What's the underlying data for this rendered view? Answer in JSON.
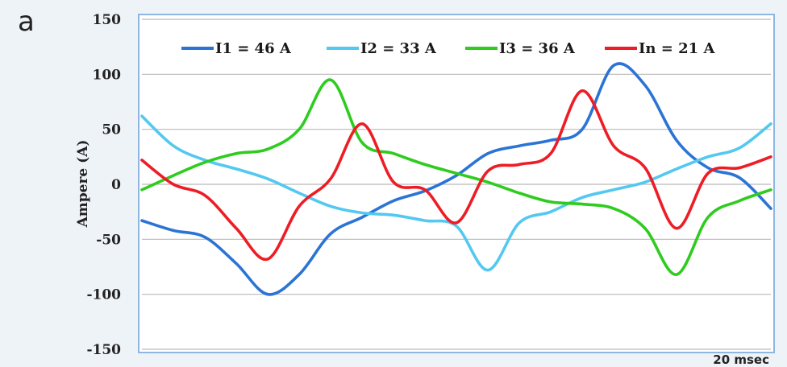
{
  "panel_label": "a",
  "chart_data": {
    "type": "line",
    "title": "",
    "xlabel": "",
    "ylabel": "Ampere (A)",
    "ylim": [
      -150,
      150
    ],
    "yticks": [
      150,
      100,
      50,
      0,
      -50,
      -100,
      -150
    ],
    "grid": true,
    "legend_position": "top",
    "duration_label": "20 msec",
    "x": [
      0,
      5,
      10,
      15,
      20,
      25,
      30,
      35,
      40,
      45,
      50,
      55,
      60,
      65,
      70,
      75,
      80,
      85,
      90,
      95,
      100
    ],
    "series": [
      {
        "name": "I1 = 46 A",
        "color": "#2b74d6",
        "values": [
          -33,
          -42,
          -48,
          -72,
          -100,
          -82,
          -45,
          -30,
          -15,
          -6,
          8,
          28,
          35,
          40,
          50,
          108,
          90,
          40,
          15,
          6,
          -22
        ]
      },
      {
        "name": "I2 = 33 A",
        "color": "#53c8f0",
        "values": [
          62,
          35,
          22,
          14,
          5,
          -8,
          -20,
          -26,
          -28,
          -33,
          -38,
          -78,
          -35,
          -25,
          -12,
          -5,
          2,
          14,
          25,
          33,
          55
        ]
      },
      {
        "name": "I3 = 36 A",
        "color": "#2ecc1e",
        "values": [
          -5,
          8,
          20,
          28,
          32,
          50,
          95,
          38,
          28,
          18,
          10,
          2,
          -8,
          -16,
          -18,
          -22,
          -40,
          -82,
          -30,
          -15,
          -5
        ]
      },
      {
        "name": "In = 21 A",
        "color": "#ee1c25",
        "values": [
          22,
          0,
          -10,
          -40,
          -68,
          -20,
          5,
          55,
          2,
          -5,
          -35,
          12,
          18,
          28,
          85,
          35,
          15,
          -40,
          10,
          15,
          25
        ]
      }
    ]
  }
}
